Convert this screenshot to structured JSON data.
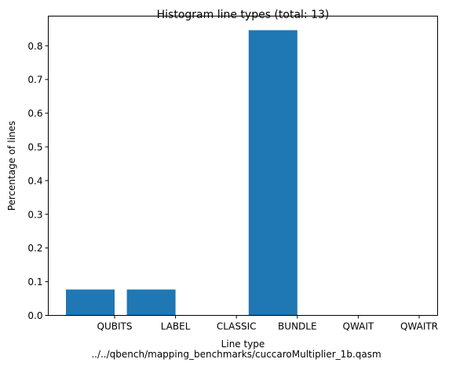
{
  "chart_data": {
    "type": "bar",
    "title": "Histogram line types (total: 13)",
    "xlabel": "Line type",
    "ylabel": "Percentage of lines",
    "subtitle": "../../qbench/mapping_benchmarks/cuccaroMultiplier_1b.qasm",
    "categories": [
      "QUBITS",
      "LABEL",
      "CLASSIC",
      "BUNDLE",
      "QWAIT",
      "QWAITR"
    ],
    "values": [
      0.0769,
      0.0769,
      0.0,
      0.8462,
      0.0,
      0.0
    ],
    "ylim": [
      0,
      0.888
    ],
    "yticks": [
      "0.0",
      "0.1",
      "0.2",
      "0.3",
      "0.4",
      "0.5",
      "0.6",
      "0.7",
      "0.8"
    ],
    "bar_color": "#1f77b4",
    "grid": false,
    "legend": "none"
  }
}
